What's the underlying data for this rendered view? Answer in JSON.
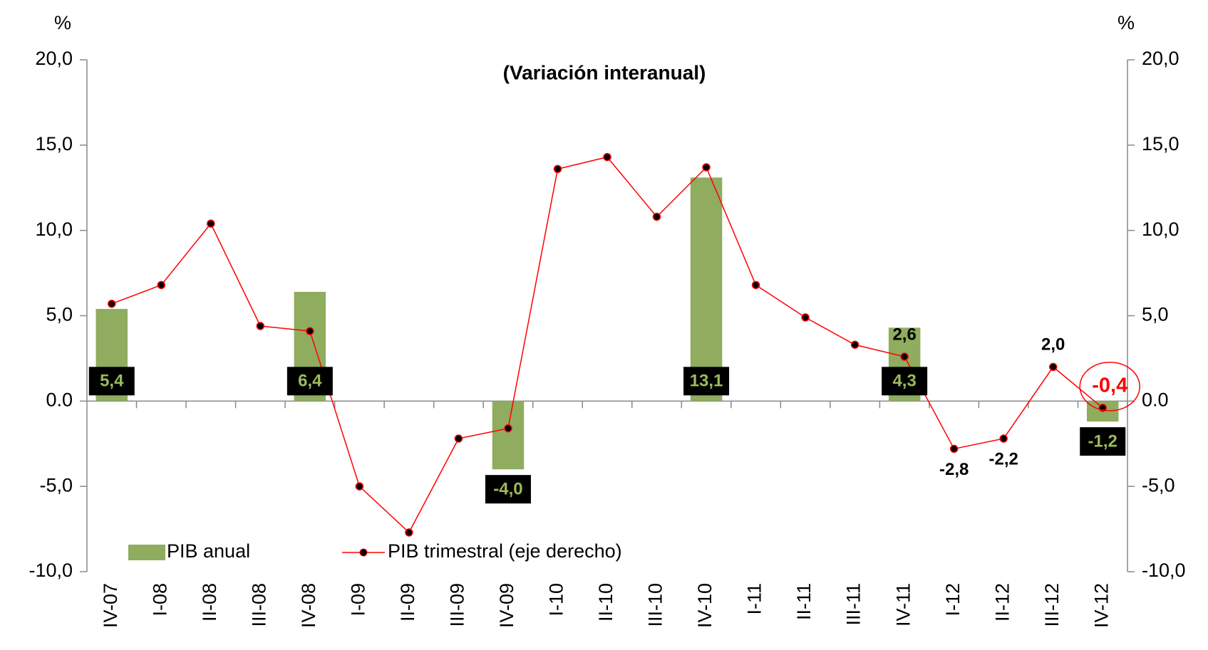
{
  "chart_data": {
    "type": "bar_line",
    "title": "(Variación interanual)",
    "y_label": "%",
    "y2_label": "%",
    "categories": [
      "IV-07",
      "I-08",
      "II-08",
      "III-08",
      "IV-08",
      "I-09",
      "II-09",
      "III-09",
      "IV-09",
      "I-10",
      "II-10",
      "III-10",
      "IV-10",
      "I-11",
      "II-11",
      "III-11",
      "IV-11",
      "I-12",
      "II-12",
      "III-12",
      "IV-12"
    ],
    "series": [
      {
        "name": "PIB anual",
        "type": "bar",
        "color": "#8fac5f",
        "values": [
          5.4,
          null,
          null,
          null,
          6.4,
          null,
          null,
          null,
          -4.0,
          null,
          null,
          null,
          13.1,
          null,
          null,
          null,
          4.3,
          null,
          null,
          null,
          -1.2
        ],
        "value_labels": [
          "5,4",
          null,
          null,
          null,
          "6,4",
          null,
          null,
          null,
          "-4,0",
          null,
          null,
          null,
          "13,1",
          null,
          null,
          null,
          "4,3",
          null,
          null,
          null,
          "-1,2"
        ]
      },
      {
        "name": "PIB trimestral (eje derecho)",
        "type": "line",
        "axis": "y2",
        "color": "#ff0000",
        "values": [
          5.7,
          6.8,
          10.4,
          4.4,
          4.1,
          -5.0,
          -7.7,
          -2.2,
          -1.6,
          13.6,
          14.3,
          10.8,
          13.7,
          6.8,
          4.9,
          3.3,
          2.6,
          -2.8,
          -2.2,
          2.0,
          -0.4
        ],
        "value_labels": [
          null,
          null,
          null,
          null,
          null,
          null,
          null,
          null,
          null,
          null,
          null,
          null,
          null,
          null,
          null,
          null,
          "2,6",
          "-2,8",
          "-2,2",
          "2,0",
          "-0,4"
        ]
      }
    ],
    "ylim": [
      -10,
      20
    ],
    "yticks": [
      {
        "value": -10,
        "label": "-10,0"
      },
      {
        "value": -5,
        "label": "-5,0"
      },
      {
        "value": 0,
        "label": "0.0"
      },
      {
        "value": 5,
        "label": "5,0"
      },
      {
        "value": 10,
        "label": "10,0"
      },
      {
        "value": 15,
        "label": "15,0"
      },
      {
        "value": 20,
        "label": "20,0"
      }
    ],
    "y2lim": [
      -10,
      20
    ],
    "y2ticks": [
      {
        "value": -10,
        "label": "-10,0"
      },
      {
        "value": -5,
        "label": "-5,0"
      },
      {
        "value": 0,
        "label": "0.0"
      },
      {
        "value": 5,
        "label": "5,0"
      },
      {
        "value": 10,
        "label": "10,0"
      },
      {
        "value": 15,
        "label": "15,0"
      },
      {
        "value": 20,
        "label": "20,0"
      }
    ]
  }
}
